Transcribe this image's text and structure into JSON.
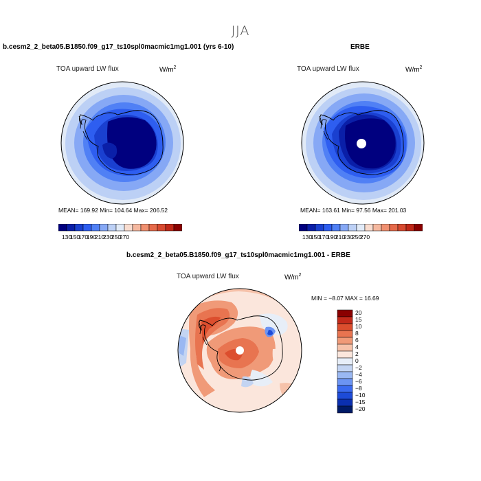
{
  "figure": {
    "season": "JJA",
    "colorbar_ticks": [
      "130",
      "150",
      "170",
      "190",
      "210",
      "230",
      "250",
      "270"
    ],
    "colorbar_colors": [
      "#00007f",
      "#0a1fa8",
      "#1a40d0",
      "#2e5ef0",
      "#5080f5",
      "#86a8f5",
      "#bcd0f5",
      "#e1eaf7",
      "#f8dccf",
      "#f5b89f",
      "#f09070",
      "#e66a4a",
      "#d84a30",
      "#c02818",
      "#8a0000"
    ],
    "diff_colors": [
      "#001a66",
      "#0a2fb0",
      "#1d4bd8",
      "#3a6af0",
      "#6c94f3",
      "#9ab8f2",
      "#c3d4f2",
      "#e7eef8",
      "#fbe6dc",
      "#f6c2aa",
      "#f09a78",
      "#e87450",
      "#dc4e2e",
      "#c3291a",
      "#8a0000"
    ],
    "diff_ticks": [
      "20",
      "15",
      "10",
      "8",
      "6",
      "4",
      "2",
      "0",
      "−2",
      "−4",
      "−6",
      "−8",
      "−10",
      "−15",
      "−20"
    ]
  },
  "panel_model": {
    "title": "b.cesm2_2_beta05.B1850.f09_g17_ts10spl0macmic1mg1.001 (yrs 6-10)",
    "field": "TOA upward LW flux",
    "units_base": "W/m",
    "units_exp": "2",
    "stats": "MEAN= 169.92   Min= 104.64   Max= 206.52"
  },
  "panel_obs": {
    "title": "ERBE",
    "field": "TOA upward LW flux",
    "units_base": "W/m",
    "units_exp": "2",
    "stats": "MEAN= 163.61   Min=  97.56   Max= 201.03"
  },
  "panel_diff": {
    "title": "b.cesm2_2_beta05.B1850.f09_g17_ts10spl0macmic1mg1.001 - ERBE",
    "field": "TOA upward LW flux",
    "units_base": "W/m",
    "units_exp": "2",
    "stats": "MIN =  −8.07  MAX =  16.69"
  },
  "chart_data": [
    {
      "type": "heatmap",
      "title": "b.cesm2_2_beta05.B1850.f09_g17_ts10spl0macmic1mg1.001 (yrs 6-10)",
      "subtitle": "TOA upward LW flux (W/m2), JJA, south polar stereographic",
      "mean": 169.92,
      "min": 104.64,
      "max": 206.52,
      "colorbar_levels": [
        130,
        150,
        170,
        190,
        210,
        230,
        250,
        270
      ]
    },
    {
      "type": "heatmap",
      "title": "ERBE",
      "subtitle": "TOA upward LW flux (W/m2), JJA, south polar stereographic",
      "mean": 163.61,
      "min": 97.56,
      "max": 201.03,
      "colorbar_levels": [
        130,
        150,
        170,
        190,
        210,
        230,
        250,
        270
      ]
    },
    {
      "type": "heatmap",
      "title": "b.cesm2_2_beta05.B1850.f09_g17_ts10spl0macmic1mg1.001 - ERBE",
      "subtitle": "TOA upward LW flux difference (W/m2), JJA",
      "min": -8.07,
      "max": 16.69,
      "colorbar_levels": [
        20,
        15,
        10,
        8,
        6,
        4,
        2,
        0,
        -2,
        -4,
        -6,
        -8,
        -10,
        -15,
        -20
      ]
    }
  ]
}
